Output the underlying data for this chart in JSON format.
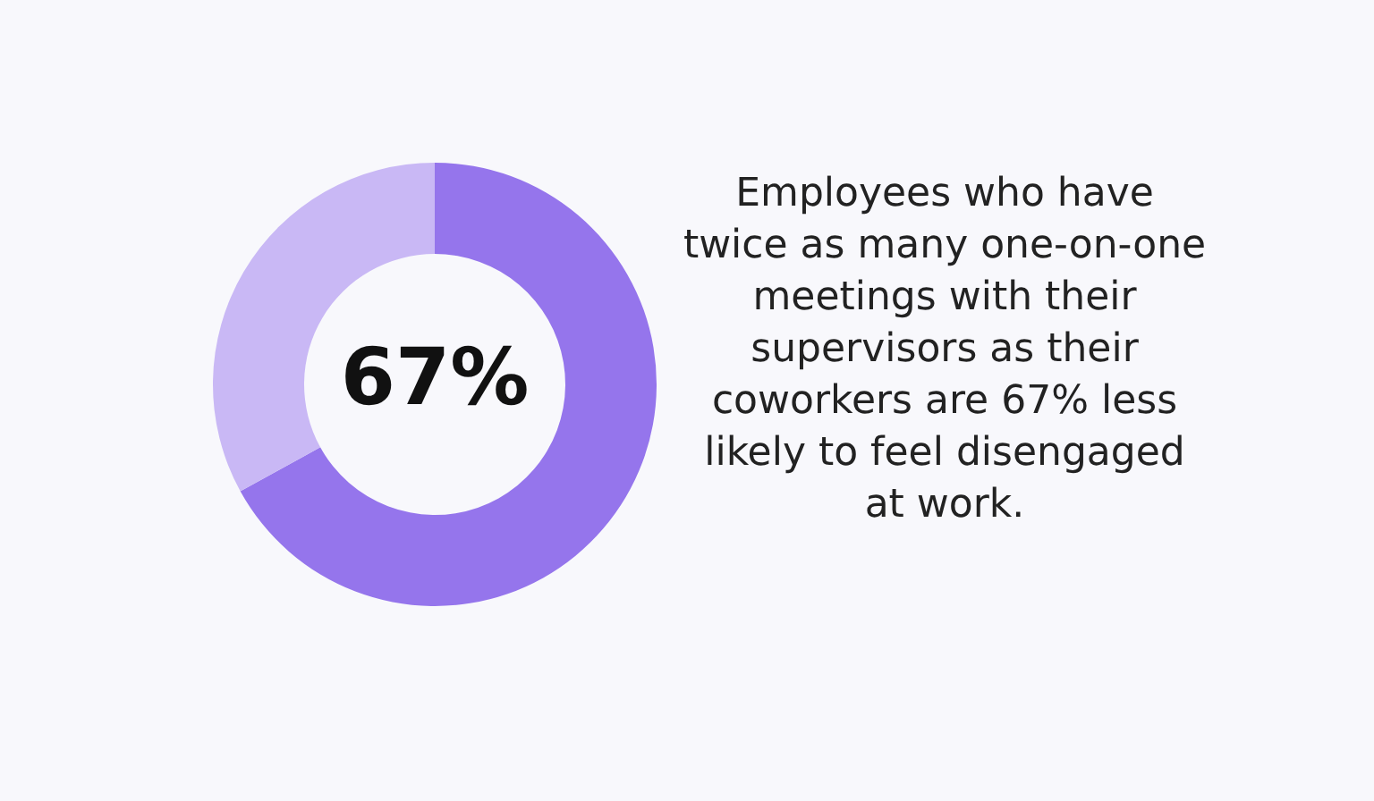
{
  "chart_data": {
    "type": "donut",
    "categories": [
      null,
      null
    ],
    "values": [
      67,
      33
    ],
    "colors": [
      "#9575ec",
      "#c9b8f5"
    ],
    "annotations": [
      "67%",
      "Employees who have\ntwice as many one-on-one\nmeetings with their\nsupervisors as their\ncoworkers are 67% less\nlikely to feel disengaged\nat work."
    ]
  }
}
